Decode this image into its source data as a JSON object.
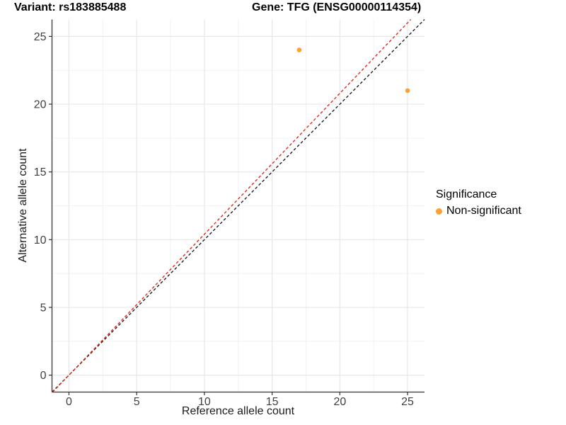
{
  "titles": {
    "variant": "Variant: rs183885488",
    "gene": "Gene: TFG (ENSG00000114354)"
  },
  "legend": {
    "title": "Significance",
    "items": [
      {
        "label": "Non-significant",
        "color": "#FFA033",
        "marker": "circle-icon"
      }
    ]
  },
  "chart_data": {
    "type": "scatter",
    "title": "Variant: rs183885488   Gene: TFG (ENSG00000114354)",
    "xlabel": "Reference allele count",
    "ylabel": "Alternative allele count",
    "xlim": [
      -1.25,
      26.25
    ],
    "ylim": [
      -1.25,
      26.25
    ],
    "x_ticks": [
      0,
      5,
      10,
      15,
      20,
      25
    ],
    "y_ticks": [
      0,
      5,
      10,
      15,
      20,
      25
    ],
    "grid": {
      "major_color": "#e7e7e7",
      "minor_color": "#f2f2f2",
      "shown": true
    },
    "legend_position": "right",
    "series": [
      {
        "name": "Non-significant",
        "color": "#FFA033",
        "points": [
          {
            "x": 17,
            "y": 24
          },
          {
            "x": 25,
            "y": 21
          }
        ]
      }
    ],
    "lines": [
      {
        "name": "identity-line",
        "slope": 1.0,
        "intercept": 0,
        "color": "#1f1f1f",
        "style": "dashed"
      },
      {
        "name": "expected-ratio-line",
        "slope": 1.04,
        "intercept": 0,
        "color": "#E02B1F",
        "style": "dashed"
      }
    ],
    "axis": {
      "line_color": "#333333",
      "tick_color": "#333333",
      "tick_label_color": "#404040"
    }
  }
}
